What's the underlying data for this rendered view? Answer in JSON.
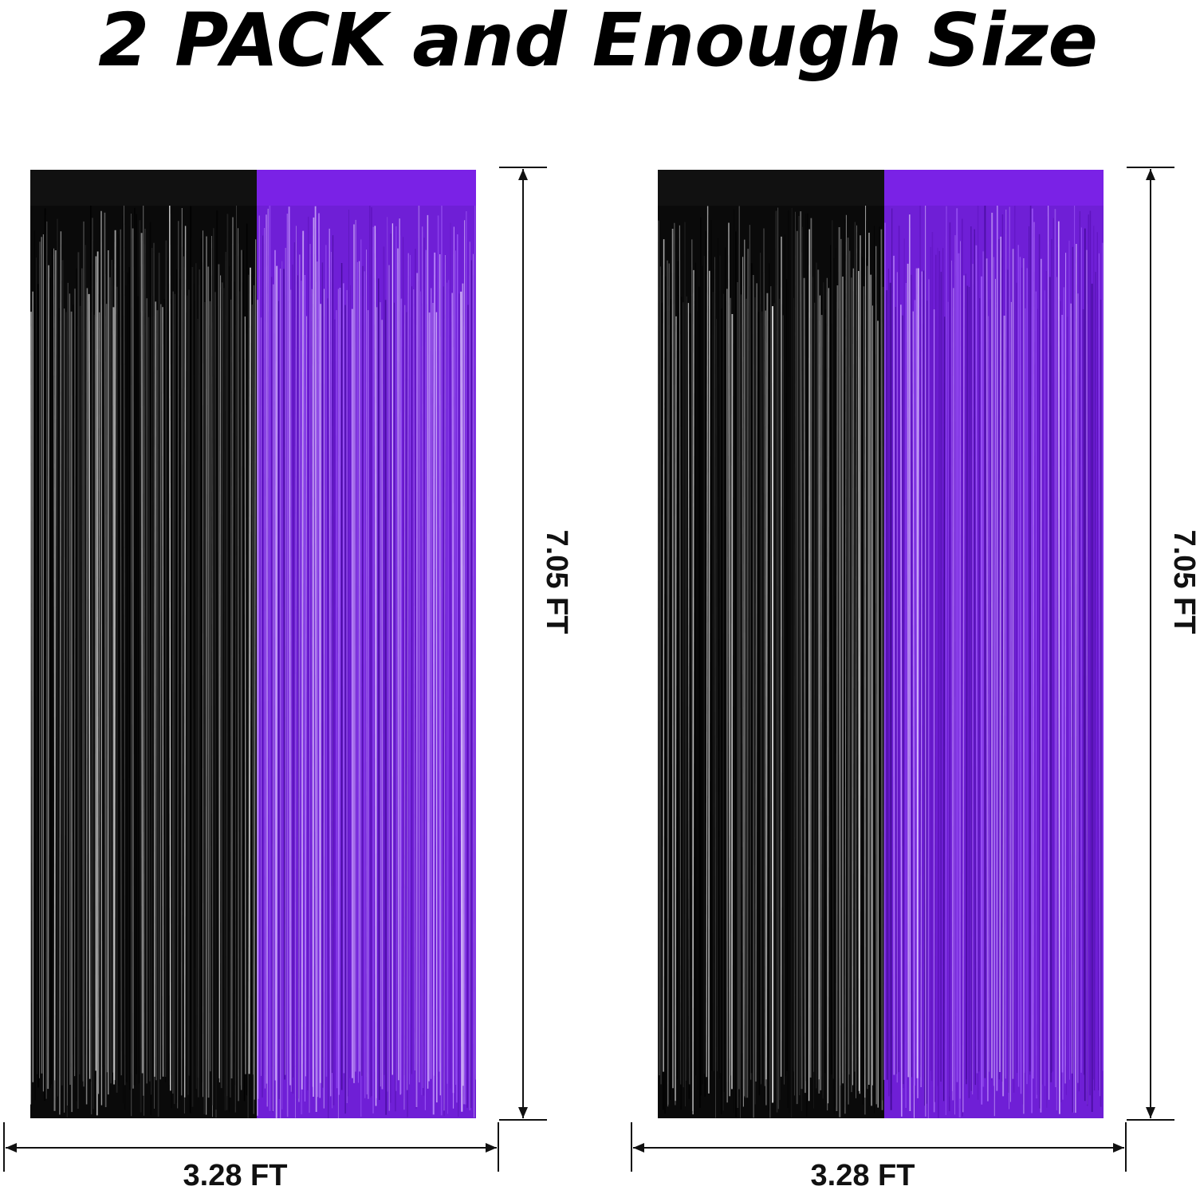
{
  "title": "2 PACK and Enough Size",
  "products": [
    {
      "height_label": "7.05 FT",
      "width_label": "3.28 FT"
    },
    {
      "height_label": "7.05 FT",
      "width_label": "3.28 FT"
    }
  ]
}
